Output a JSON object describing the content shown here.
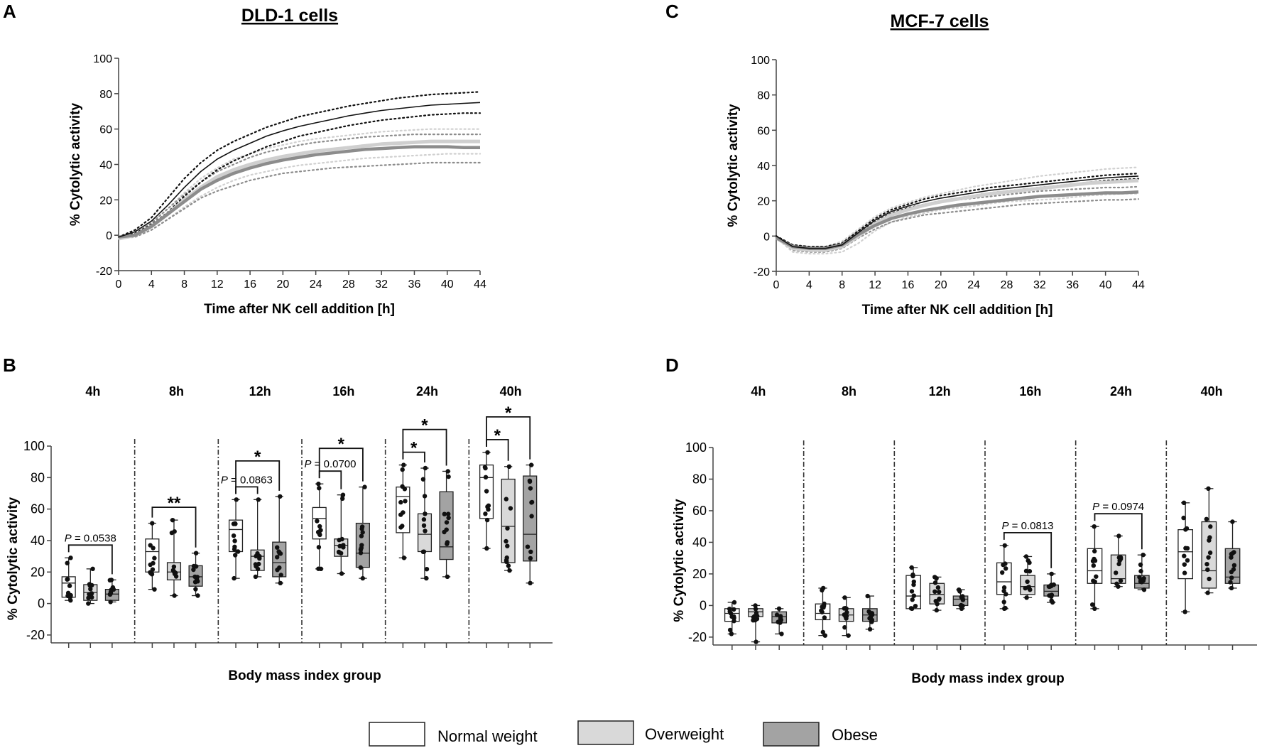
{
  "figure": {
    "panels": {
      "A": {
        "letter": "A",
        "title": "DLD-1 cells"
      },
      "B": {
        "letter": "B"
      },
      "C": {
        "letter": "C",
        "title": "MCF-7 cells"
      },
      "D": {
        "letter": "D"
      }
    },
    "legend": [
      {
        "label": "Normal weight",
        "fill": "#ffffff"
      },
      {
        "label": "Overweight",
        "fill": "#d9d9d9"
      },
      {
        "label": "Obese",
        "fill": "#a3a3a3"
      }
    ],
    "colors": {
      "normal": "#111111",
      "overweight": "#cfcfcf",
      "obese": "#8c8c8c"
    }
  },
  "chart_data": [
    {
      "id": "A",
      "type": "line",
      "title": "DLD-1 cells",
      "xlabel": "Time after NK cell addition [h]",
      "ylabel": "% Cytolytic activity",
      "xlim": [
        0,
        44
      ],
      "ylim": [
        -20,
        100
      ],
      "xticks": [
        0,
        4,
        8,
        12,
        16,
        20,
        24,
        28,
        32,
        36,
        40,
        44
      ],
      "yticks": [
        -20,
        0,
        20,
        40,
        60,
        80,
        100
      ],
      "x": [
        0,
        2,
        4,
        6,
        8,
        10,
        12,
        14,
        16,
        18,
        20,
        22,
        24,
        26,
        28,
        30,
        32,
        34,
        36,
        38,
        40,
        42,
        44
      ],
      "series": [
        {
          "name": "Normal weight",
          "values": [
            -1,
            2,
            8,
            17,
            27,
            36,
            43,
            48,
            52,
            56,
            59,
            61.5,
            63.5,
            65.5,
            67.5,
            69,
            70.5,
            71.5,
            72.5,
            73.5,
            74,
            74.5,
            75
          ],
          "upper": [
            -1,
            3,
            10,
            21,
            32,
            41,
            48,
            53,
            57,
            61,
            64,
            67,
            69,
            71,
            73,
            74.5,
            76,
            77.5,
            78.5,
            79.5,
            80,
            80.5,
            81
          ],
          "lower": [
            -1,
            1,
            6,
            13,
            22,
            30,
            37,
            42,
            46,
            50,
            53,
            56,
            58,
            60,
            62,
            63.5,
            65,
            66,
            67,
            68,
            68.5,
            69,
            69
          ]
        },
        {
          "name": "Overweight",
          "values": [
            -2,
            0,
            5,
            12,
            20,
            27,
            33,
            37,
            40,
            42.5,
            44.5,
            46,
            47.5,
            48.5,
            49.5,
            50.5,
            51.5,
            52,
            52.5,
            53,
            53,
            53,
            53
          ],
          "upper": [
            -2,
            1,
            7,
            15,
            24,
            32,
            38,
            43,
            46,
            49,
            51,
            53,
            54.5,
            55.5,
            56.5,
            57.5,
            58.5,
            59,
            59.5,
            60,
            60,
            60,
            60
          ],
          "lower": [
            -2,
            -1,
            3,
            9,
            16,
            22,
            27,
            31,
            34,
            36,
            38,
            39.5,
            40.5,
            41.5,
            42.5,
            43.5,
            44,
            44.5,
            45,
            45.5,
            46,
            46,
            46
          ]
        },
        {
          "name": "Obese",
          "values": [
            -1,
            0,
            5,
            12,
            19,
            26,
            31,
            35,
            38,
            40.5,
            42.5,
            44,
            45.5,
            46.5,
            47.5,
            48.5,
            49,
            49.5,
            50,
            50,
            50,
            49.5,
            49.5
          ],
          "upper": [
            -1,
            1,
            7,
            15,
            23,
            30,
            36,
            40,
            44,
            47,
            49,
            51,
            52.5,
            53.5,
            54.5,
            55.5,
            56,
            56.5,
            57,
            57,
            57,
            57,
            57
          ],
          "lower": [
            -1,
            -1,
            3,
            9,
            15,
            21,
            25,
            28,
            31,
            33,
            35,
            36,
            37,
            38,
            38.5,
            39,
            39.5,
            40,
            40.5,
            41,
            41,
            41,
            41
          ]
        }
      ]
    },
    {
      "id": "C",
      "type": "line",
      "title": "MCF-7 cells",
      "xlabel": "Time after NK cell addition [h]",
      "ylabel": "% Cytolytic activity",
      "xlim": [
        0,
        44
      ],
      "ylim": [
        -20,
        100
      ],
      "xticks": [
        0,
        4,
        8,
        12,
        16,
        20,
        24,
        28,
        32,
        36,
        40,
        44
      ],
      "yticks": [
        -20,
        0,
        20,
        40,
        60,
        80,
        100
      ],
      "x": [
        0,
        2,
        4,
        6,
        8,
        10,
        12,
        14,
        16,
        18,
        20,
        22,
        24,
        26,
        28,
        30,
        32,
        34,
        36,
        38,
        40,
        42,
        44
      ],
      "series": [
        {
          "name": "Normal weight",
          "values": [
            0,
            -6,
            -7,
            -7,
            -5,
            2,
            9,
            14,
            17,
            19.5,
            21.5,
            23,
            24.5,
            26,
            27,
            28,
            29,
            30,
            31,
            32,
            33,
            33.5,
            34
          ],
          "upper": [
            0,
            -5,
            -6,
            -6,
            -4,
            3,
            10,
            15,
            18,
            21,
            23,
            24.5,
            26,
            27.5,
            28.5,
            29.5,
            30.5,
            31.5,
            32.5,
            33.5,
            34.5,
            35,
            35.5
          ],
          "lower": [
            0,
            -7,
            -8,
            -8,
            -6,
            1,
            8,
            13,
            16,
            18,
            20,
            21.5,
            23,
            24.5,
            25.5,
            26.5,
            27.5,
            28.5,
            29.5,
            30.5,
            31.5,
            32,
            32.5
          ]
        },
        {
          "name": "Overweight",
          "values": [
            -1,
            -7,
            -8,
            -8,
            -6,
            0,
            7,
            12,
            15,
            17.5,
            19.5,
            21,
            22.5,
            24,
            25,
            26,
            27,
            28,
            29,
            30,
            30.5,
            31,
            31.5
          ],
          "upper": [
            -1,
            -5,
            -6,
            -6,
            -3,
            4,
            11,
            16,
            19,
            22,
            24,
            26,
            28,
            29.5,
            31,
            32.5,
            34,
            35,
            36,
            37,
            38,
            38.5,
            39
          ],
          "lower": [
            -1,
            -9,
            -10,
            -10,
            -9,
            -4,
            3,
            8,
            11,
            13,
            15,
            16,
            17,
            18.5,
            19.5,
            20,
            20.5,
            21,
            22,
            23,
            23.5,
            24,
            24
          ]
        },
        {
          "name": "Obese",
          "values": [
            -1,
            -6,
            -7,
            -7,
            -5,
            1,
            6,
            10,
            12.5,
            14.5,
            16,
            17.5,
            18.5,
            19.5,
            20.5,
            21.5,
            22.5,
            23,
            23.5,
            24,
            24.5,
            24.5,
            25
          ],
          "upper": [
            -1,
            -5,
            -6,
            -6,
            -4,
            3,
            8,
            12,
            15,
            17,
            19,
            20.5,
            21.5,
            22.5,
            23.5,
            24.5,
            25.5,
            26,
            26.5,
            27,
            27.5,
            27.5,
            28
          ],
          "lower": [
            -1,
            -8,
            -9,
            -9,
            -7,
            -1,
            4,
            8,
            10,
            12,
            13,
            14,
            15,
            16,
            17,
            18,
            18.5,
            19,
            19.5,
            20,
            20.5,
            20.5,
            21
          ]
        }
      ]
    },
    {
      "id": "B",
      "type": "box",
      "xlabel": "Body mass index group",
      "ylabel": "% Cytolytic activity",
      "ylim": [
        -25,
        100
      ],
      "yticks": [
        -20,
        0,
        20,
        40,
        60,
        80,
        100
      ],
      "categories": [
        "4h",
        "8h",
        "12h",
        "16h",
        "24h",
        "40h"
      ],
      "groups": [
        "Normal weight",
        "Overweight",
        "Obese"
      ],
      "boxes": [
        [
          {
            "q1": 4,
            "median": 13,
            "q3": 17,
            "min": 2,
            "max": 29
          },
          {
            "q1": 2,
            "median": 7,
            "q3": 12,
            "min": 0,
            "max": 22
          },
          {
            "q1": 2,
            "median": 6,
            "q3": 9,
            "min": 1,
            "max": 15
          }
        ],
        [
          {
            "q1": 20,
            "median": 33,
            "q3": 41,
            "min": 9,
            "max": 51
          },
          {
            "q1": 15,
            "median": 20,
            "q3": 26,
            "min": 5,
            "max": 53
          },
          {
            "q1": 11,
            "median": 17,
            "q3": 24,
            "min": 5,
            "max": 32
          }
        ],
        [
          {
            "q1": 33,
            "median": 47,
            "q3": 53,
            "min": 16,
            "max": 66
          },
          {
            "q1": 21,
            "median": 30,
            "q3": 34,
            "min": 17,
            "max": 66
          },
          {
            "q1": 17,
            "median": 26,
            "q3": 39,
            "min": 13,
            "max": 68
          }
        ],
        [
          {
            "q1": 41,
            "median": 54,
            "q3": 61,
            "min": 22,
            "max": 76
          },
          {
            "q1": 30,
            "median": 37,
            "q3": 41,
            "min": 19,
            "max": 69
          },
          {
            "q1": 23,
            "median": 32,
            "q3": 51,
            "min": 16,
            "max": 74
          }
        ],
        [
          {
            "q1": 45,
            "median": 68,
            "q3": 74,
            "min": 29,
            "max": 88
          },
          {
            "q1": 33,
            "median": 44,
            "q3": 57,
            "min": 16,
            "max": 86
          },
          {
            "q1": 28,
            "median": 36,
            "q3": 71,
            "min": 17,
            "max": 84
          }
        ],
        [
          {
            "q1": 54,
            "median": 80,
            "q3": 88,
            "min": 35,
            "max": 96
          },
          {
            "q1": 26,
            "median": 49,
            "q3": 79,
            "min": 21,
            "max": 87
          },
          {
            "q1": 27,
            "median": 44,
            "q3": 81,
            "min": 13,
            "max": 88
          }
        ]
      ],
      "annotations": [
        {
          "category": "4h",
          "from": 0,
          "to": 2,
          "label": "P = 0.0538"
        },
        {
          "category": "8h",
          "from": 0,
          "to": 2,
          "label": "**"
        },
        {
          "category": "12h",
          "from": 0,
          "to": 1,
          "label": "P = 0.0863"
        },
        {
          "category": "12h",
          "from": 0,
          "to": 2,
          "label": "*"
        },
        {
          "category": "16h",
          "from": 0,
          "to": 1,
          "label": "P = 0.0700"
        },
        {
          "category": "16h",
          "from": 0,
          "to": 2,
          "label": "*"
        },
        {
          "category": "24h",
          "from": 0,
          "to": 1,
          "label": "*"
        },
        {
          "category": "24h",
          "from": 0,
          "to": 2,
          "label": "*"
        },
        {
          "category": "40h",
          "from": 0,
          "to": 1,
          "label": "*"
        },
        {
          "category": "40h",
          "from": 0,
          "to": 2,
          "label": "*"
        }
      ]
    },
    {
      "id": "D",
      "type": "box",
      "xlabel": "Body mass index group",
      "ylabel": "% Cytolytic activity",
      "ylim": [
        -25,
        100
      ],
      "yticks": [
        -20,
        0,
        20,
        40,
        60,
        80,
        100
      ],
      "categories": [
        "4h",
        "8h",
        "12h",
        "16h",
        "24h",
        "40h"
      ],
      "groups": [
        "Normal weight",
        "Overweight",
        "Obese"
      ],
      "boxes": [
        [
          {
            "q1": -10,
            "median": -5,
            "q3": -2,
            "min": -18,
            "max": 2
          },
          {
            "q1": -7,
            "median": -4,
            "q3": -2,
            "min": -23,
            "max": 0
          },
          {
            "q1": -11,
            "median": -7,
            "q3": -4,
            "min": -18,
            "max": -2
          }
        ],
        [
          {
            "q1": -9,
            "median": -5,
            "q3": 1,
            "min": -19,
            "max": 11
          },
          {
            "q1": -10,
            "median": -6,
            "q3": -2,
            "min": -19,
            "max": 5
          },
          {
            "q1": -10,
            "median": -6,
            "q3": -2,
            "min": -15,
            "max": 6
          }
        ],
        [
          {
            "q1": -2,
            "median": 6,
            "q3": 19,
            "min": -2,
            "max": 24
          },
          {
            "q1": 1,
            "median": 7,
            "q3": 14,
            "min": -3,
            "max": 18
          },
          {
            "q1": 0,
            "median": 4,
            "q3": 6,
            "min": -2,
            "max": 10
          }
        ],
        [
          {
            "q1": 7,
            "median": 15,
            "q3": 27,
            "min": -2,
            "max": 38
          },
          {
            "q1": 7,
            "median": 12,
            "q3": 19,
            "min": 5,
            "max": 31
          },
          {
            "q1": 6,
            "median": 9,
            "q3": 13,
            "min": 2,
            "max": 20
          }
        ],
        [
          {
            "q1": 14,
            "median": 22,
            "q3": 36,
            "min": -2,
            "max": 50
          },
          {
            "q1": 14,
            "median": 17,
            "q3": 32,
            "min": 12,
            "max": 44
          },
          {
            "q1": 11,
            "median": 14,
            "q3": 19,
            "min": 10,
            "max": 32
          }
        ],
        [
          {
            "q1": 17,
            "median": 34,
            "q3": 48,
            "min": -4,
            "max": 65
          },
          {
            "q1": 11,
            "median": 22,
            "q3": 53,
            "min": 8,
            "max": 74
          },
          {
            "q1": 14,
            "median": 18,
            "q3": 36,
            "min": 11,
            "max": 53
          }
        ]
      ],
      "annotations": [
        {
          "category": "16h",
          "from": 0,
          "to": 2,
          "label": "P = 0.0813"
        },
        {
          "category": "24h",
          "from": 0,
          "to": 2,
          "label": "P = 0.0974"
        }
      ]
    }
  ]
}
